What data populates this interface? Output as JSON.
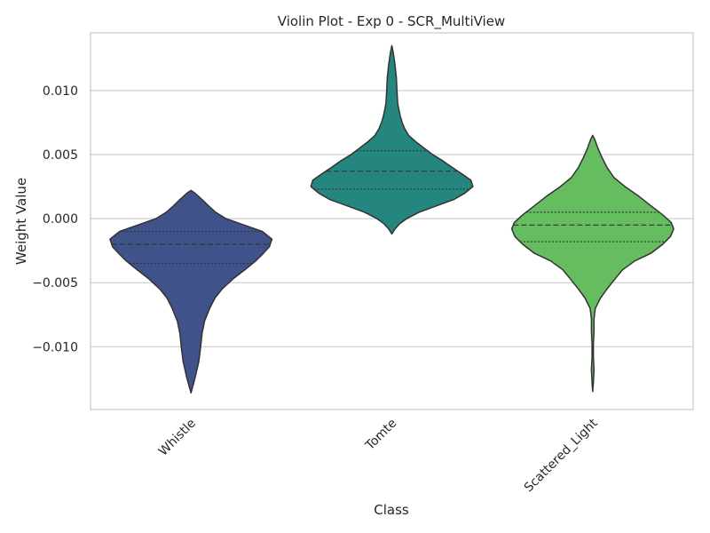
{
  "chart_data": {
    "type": "violin",
    "title": "Violin Plot - Exp 0 - SCR_MultiView",
    "xlabel": "Class",
    "ylabel": "Weight Value",
    "ylim": [
      -0.0149,
      0.0145
    ],
    "yticks": [
      -0.01,
      -0.005,
      0.0,
      0.005,
      0.01
    ],
    "ytick_labels": [
      "−0.010",
      "−0.005",
      "0.000",
      "0.005",
      "0.010"
    ],
    "grid": true,
    "categories": [
      "Whistle",
      "Tomte",
      "Scattered_Light"
    ],
    "series": [
      {
        "category": "Whistle",
        "color": "#3f528a",
        "min": -0.0136,
        "max": 0.0022,
        "q1": -0.0035,
        "median": -0.002,
        "q3": -0.001,
        "profile": [
          [
            -0.0136,
            0.0
          ],
          [
            -0.0125,
            0.06
          ],
          [
            -0.0112,
            0.12
          ],
          [
            -0.01,
            0.15
          ],
          [
            -0.009,
            0.17
          ],
          [
            -0.008,
            0.21
          ],
          [
            -0.007,
            0.29
          ],
          [
            -0.0062,
            0.37
          ],
          [
            -0.0055,
            0.48
          ],
          [
            -0.0047,
            0.65
          ],
          [
            -0.004,
            0.83
          ],
          [
            -0.0033,
            1.0
          ],
          [
            -0.0028,
            1.1
          ],
          [
            -0.0022,
            1.21
          ],
          [
            -0.0016,
            1.25
          ],
          [
            -0.001,
            1.1
          ],
          [
            -0.0005,
            0.82
          ],
          [
            0.0,
            0.54
          ],
          [
            0.0005,
            0.38
          ],
          [
            0.001,
            0.27
          ],
          [
            0.0015,
            0.17
          ],
          [
            0.002,
            0.06
          ],
          [
            0.0022,
            0.0
          ]
        ]
      },
      {
        "category": "Tomte",
        "color": "#24867f",
        "min": -0.0012,
        "max": 0.0135,
        "q1": 0.0023,
        "median": 0.0037,
        "q3": 0.0053,
        "profile": [
          [
            -0.0012,
            0.0
          ],
          [
            -0.0008,
            0.05
          ],
          [
            -0.0004,
            0.12
          ],
          [
            0.0,
            0.23
          ],
          [
            0.0005,
            0.42
          ],
          [
            0.001,
            0.69
          ],
          [
            0.0015,
            0.96
          ],
          [
            0.002,
            1.13
          ],
          [
            0.0025,
            1.25
          ],
          [
            0.003,
            1.22
          ],
          [
            0.0035,
            1.08
          ],
          [
            0.004,
            0.93
          ],
          [
            0.0045,
            0.79
          ],
          [
            0.005,
            0.63
          ],
          [
            0.0055,
            0.5
          ],
          [
            0.006,
            0.37
          ],
          [
            0.0065,
            0.26
          ],
          [
            0.007,
            0.2
          ],
          [
            0.0075,
            0.16
          ],
          [
            0.008,
            0.13
          ],
          [
            0.0085,
            0.11
          ],
          [
            0.009,
            0.09
          ],
          [
            0.01,
            0.08
          ],
          [
            0.011,
            0.07
          ],
          [
            0.012,
            0.05
          ],
          [
            0.013,
            0.02
          ],
          [
            0.0135,
            0.0
          ]
        ]
      },
      {
        "category": "Scattered_Light",
        "color": "#65bd5f",
        "min": -0.0135,
        "max": 0.0065,
        "q1": -0.0018,
        "median": -0.0005,
        "q3": 0.0005,
        "profile": [
          [
            -0.0135,
            0.0
          ],
          [
            -0.0128,
            0.01
          ],
          [
            -0.0118,
            0.02
          ],
          [
            -0.0108,
            0.01
          ],
          [
            -0.0098,
            0.01
          ],
          [
            -0.0088,
            0.02
          ],
          [
            -0.0078,
            0.02
          ],
          [
            -0.007,
            0.04
          ],
          [
            -0.0062,
            0.12
          ],
          [
            -0.0055,
            0.22
          ],
          [
            -0.0048,
            0.33
          ],
          [
            -0.004,
            0.46
          ],
          [
            -0.0033,
            0.65
          ],
          [
            -0.0027,
            0.9
          ],
          [
            -0.002,
            1.08
          ],
          [
            -0.0014,
            1.2
          ],
          [
            -0.0008,
            1.25
          ],
          [
            -0.0003,
            1.21
          ],
          [
            0.0003,
            1.08
          ],
          [
            0.001,
            0.9
          ],
          [
            0.0018,
            0.7
          ],
          [
            0.0025,
            0.5
          ],
          [
            0.0032,
            0.33
          ],
          [
            0.004,
            0.22
          ],
          [
            0.0048,
            0.14
          ],
          [
            0.0055,
            0.08
          ],
          [
            0.0062,
            0.03
          ],
          [
            0.0065,
            0.0
          ]
        ]
      }
    ]
  }
}
